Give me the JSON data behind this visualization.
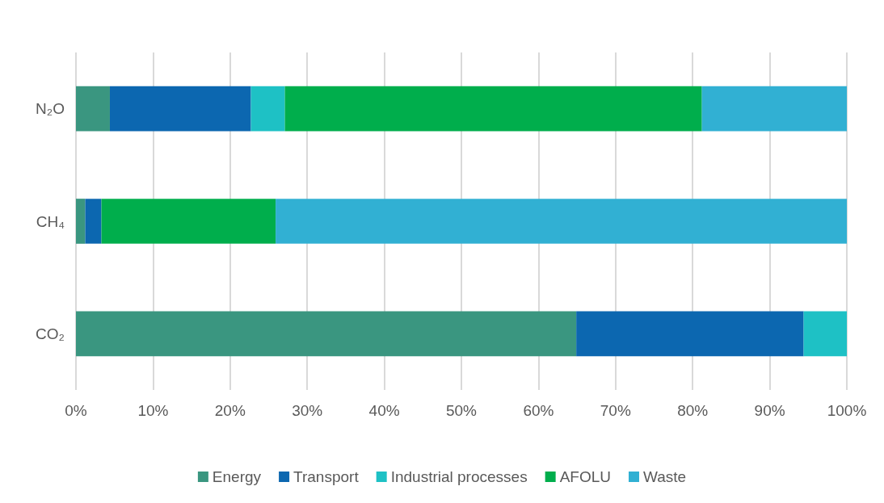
{
  "chart_data": {
    "type": "bar",
    "orientation": "horizontal",
    "stacked": true,
    "categories": [
      "N₂O",
      "CH₄",
      "CO₂"
    ],
    "series": [
      {
        "name": "Energy",
        "color": "#3a9680",
        "values": [
          4.4,
          1.2,
          64.9
        ]
      },
      {
        "name": "Transport",
        "color": "#0c67b0",
        "values": [
          18.3,
          2.1,
          29.5
        ]
      },
      {
        "name": "Industrial processes",
        "color": "#1ec1c5",
        "values": [
          4.4,
          null,
          5.6
        ]
      },
      {
        "name": "AFOLU",
        "color": "#00ae4c",
        "values": [
          54.1,
          22.6,
          null
        ]
      },
      {
        "name": "Waste",
        "color": "#31b0d3",
        "values": [
          18.8,
          74.1,
          null
        ]
      }
    ],
    "xlim": [
      0,
      100
    ],
    "xticks": [
      {
        "value": 0,
        "label": "0%"
      },
      {
        "value": 10,
        "label": "10%"
      },
      {
        "value": 20,
        "label": "20%"
      },
      {
        "value": 30,
        "label": "30%"
      },
      {
        "value": 40,
        "label": "40%"
      },
      {
        "value": 50,
        "label": "50%"
      },
      {
        "value": 60,
        "label": "60%"
      },
      {
        "value": 70,
        "label": "70%"
      },
      {
        "value": 80,
        "label": "80%"
      },
      {
        "value": 90,
        "label": "90%"
      },
      {
        "value": 100,
        "label": "100%"
      }
    ],
    "grid": "x",
    "legend": "bottom"
  }
}
